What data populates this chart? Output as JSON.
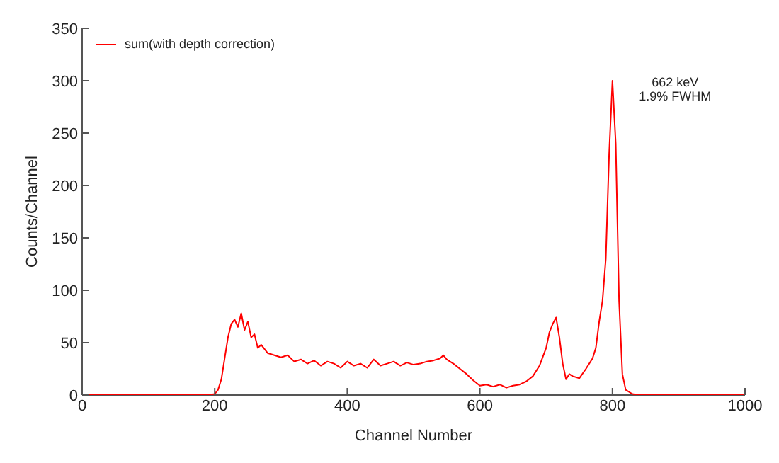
{
  "chart_data": {
    "type": "line",
    "xlabel": "Channel Number",
    "ylabel": "Counts/Channel",
    "annotations": [
      "662 keV",
      "1.9% FWHM"
    ],
    "xlim": [
      0,
      1000
    ],
    "xticks": [
      0,
      200,
      400,
      600,
      800,
      1000
    ],
    "ylim": [
      0,
      350
    ],
    "yticks": [
      0,
      50,
      100,
      150,
      200,
      250,
      300,
      350
    ],
    "grid": false,
    "legend": "top left",
    "marker": "none",
    "line_style": "solid",
    "series": [
      {
        "name": "sum(with depth correction)",
        "color": "#ff0000",
        "x": [
          0,
          20,
          40,
          60,
          80,
          100,
          120,
          140,
          160,
          180,
          190,
          200,
          205,
          210,
          215,
          220,
          225,
          230,
          235,
          240,
          245,
          250,
          255,
          260,
          265,
          270,
          280,
          290,
          300,
          310,
          320,
          330,
          340,
          350,
          360,
          370,
          380,
          390,
          400,
          410,
          420,
          430,
          440,
          450,
          460,
          470,
          480,
          490,
          500,
          510,
          520,
          530,
          540,
          545,
          550,
          560,
          570,
          580,
          590,
          600,
          610,
          620,
          630,
          640,
          650,
          660,
          670,
          680,
          690,
          700,
          705,
          710,
          715,
          720,
          725,
          730,
          735,
          740,
          750,
          760,
          770,
          775,
          780,
          785,
          790,
          795,
          800,
          805,
          810,
          815,
          820,
          830,
          840,
          860,
          880,
          900,
          920,
          940,
          960,
          980,
          1000
        ],
        "values": [
          0,
          0,
          0,
          0,
          0,
          0,
          0,
          0,
          0,
          0,
          0,
          1,
          5,
          15,
          35,
          55,
          68,
          72,
          65,
          78,
          62,
          70,
          55,
          58,
          45,
          48,
          40,
          38,
          36,
          38,
          32,
          34,
          30,
          33,
          28,
          32,
          30,
          26,
          32,
          28,
          30,
          26,
          34,
          28,
          30,
          32,
          28,
          31,
          29,
          30,
          32,
          33,
          35,
          38,
          34,
          30,
          25,
          20,
          14,
          9,
          10,
          8,
          10,
          7,
          9,
          10,
          13,
          18,
          28,
          45,
          60,
          68,
          74,
          55,
          30,
          15,
          20,
          18,
          16,
          25,
          35,
          45,
          70,
          90,
          130,
          230,
          300,
          240,
          90,
          20,
          5,
          1,
          0,
          0,
          0,
          0,
          0,
          0,
          0,
          0,
          0
        ]
      }
    ]
  }
}
